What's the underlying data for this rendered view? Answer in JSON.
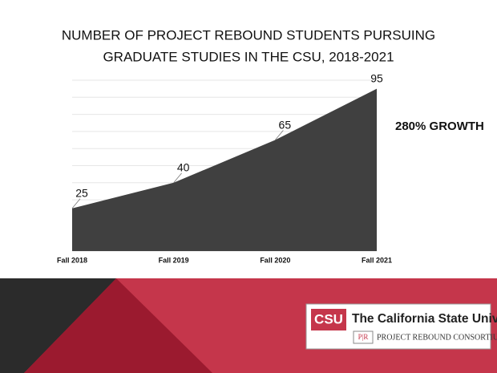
{
  "chart_data": {
    "type": "area",
    "title": [
      "NUMBER OF PROJECT REBOUND STUDENTS PURSUING",
      "GRADUATE STUDIES IN THE CSU, 2018-2021"
    ],
    "categories": [
      "Fall 2018",
      "Fall 2019",
      "Fall 2020",
      "Fall 2021"
    ],
    "values": [
      25,
      40,
      65,
      95
    ],
    "color": "#404040",
    "ylim": [
      0,
      100
    ],
    "yticks": [
      0,
      10,
      20,
      30,
      40,
      50,
      60,
      70,
      80,
      90,
      100
    ],
    "grid": true,
    "annotation": "280% GROWTH"
  },
  "logo": {
    "mark": "CSU",
    "name": "The California State University",
    "badge": "P|R",
    "subtitle": "PROJECT REBOUND CONSORTIUM"
  }
}
